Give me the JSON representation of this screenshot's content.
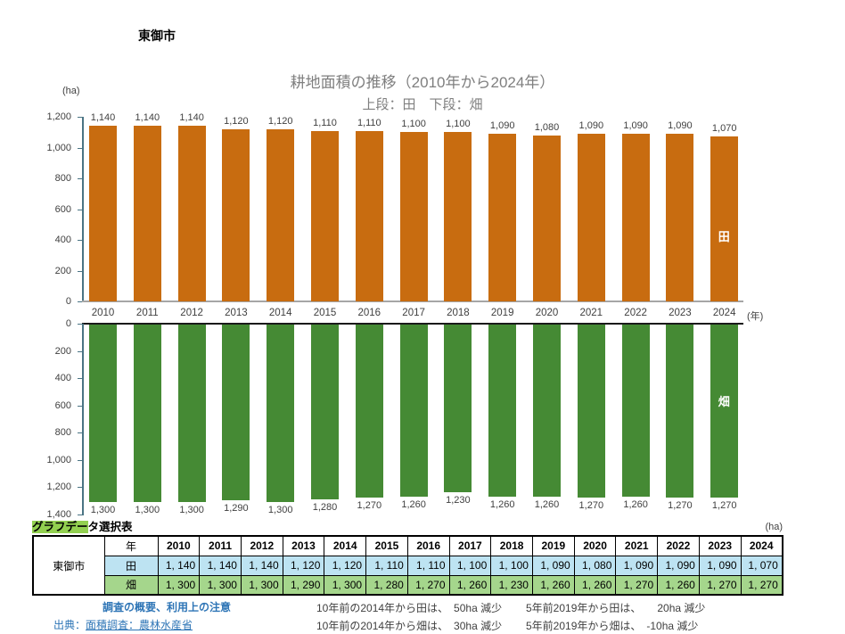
{
  "page": {
    "city": "東御市",
    "title": "耕地面積の推移（2010年から2024年）",
    "subtitle": "上段：田　下段：畑",
    "unit_top": "(ha)",
    "unit_year": "(年)"
  },
  "chart_data": {
    "type": "bar",
    "orientation": "dual-vertical, bottom chart inverted (bars hang downward)",
    "categories": [
      "2010",
      "2011",
      "2012",
      "2013",
      "2014",
      "2015",
      "2016",
      "2017",
      "2018",
      "2019",
      "2020",
      "2021",
      "2022",
      "2023",
      "2024"
    ],
    "series": [
      {
        "name": "田",
        "color": "#c86c10",
        "values": [
          1140,
          1140,
          1140,
          1120,
          1120,
          1110,
          1110,
          1100,
          1100,
          1090,
          1080,
          1090,
          1090,
          1090,
          1070
        ]
      },
      {
        "name": "畑",
        "color": "#458a34",
        "values": [
          1300,
          1300,
          1300,
          1290,
          1300,
          1280,
          1270,
          1260,
          1230,
          1260,
          1260,
          1270,
          1260,
          1270,
          1270
        ]
      }
    ],
    "title": "耕地面積の推移（2010年から2024年）",
    "subtitle": "上段：田　下段：畑",
    "xlabel": "(年)",
    "ylabel": "(ha)",
    "top_axis": {
      "min": 0,
      "max": 1200,
      "step": 200
    },
    "bottom_axis": {
      "min": 0,
      "max": 1400,
      "step": 200,
      "inverted": true
    },
    "grid": false,
    "bar_value_labels": true
  },
  "table": {
    "heading_highlight": "グラフデー",
    "heading_rest": "タ選択表",
    "unit": "(ha)",
    "row_header": "東御市",
    "col_header_year": "年"
  },
  "footer": {
    "link1": "調査の概要、利用上の注意",
    "source_label": "出典：",
    "source_link": "面積調査：農林水産省",
    "stats": [
      "10年前の2014年から田は、　50ha 減少",
      "5年前2019年から田は、　　20ha 減少",
      "10年前の2014年から畑は、　30ha 減少",
      "5年前2019年から畑は、　-10ha 減少"
    ]
  },
  "colors": {
    "ta_bar": "#c86c10",
    "hata_bar": "#458a34",
    "axis": "#4a7484",
    "top_baseline": "#a6a6a6",
    "bottom_topline": "#1a1a1a",
    "title_gray": "#7f7f7f",
    "link_blue": "#2e75b6",
    "table_ta_row": "#bde3f2",
    "table_hata_row": "#a5d68c",
    "heading_highlight": "#92d050"
  }
}
